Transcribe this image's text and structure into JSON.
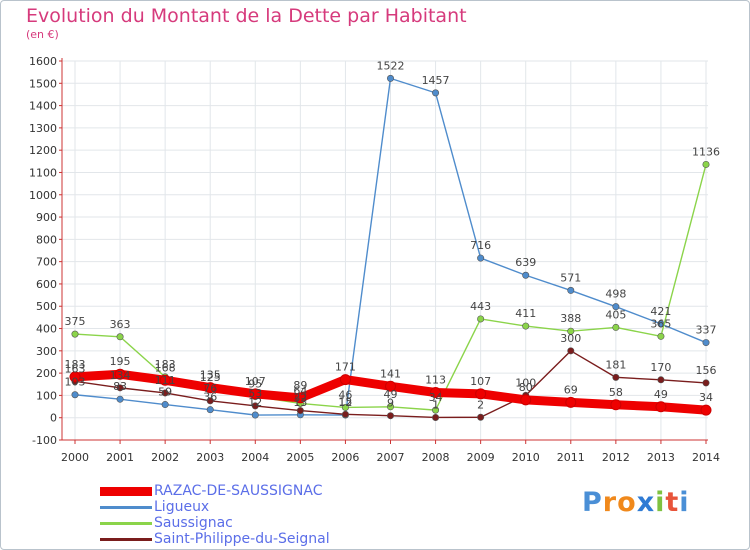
{
  "chart_data": {
    "type": "line",
    "title": "Evolution du Montant de la Dette par Habitant",
    "subtitle": "(en €)",
    "xlabel": "",
    "ylabel": "",
    "ylim": [
      -100,
      1600
    ],
    "ytick_step": 100,
    "x": [
      "2000",
      "2001",
      "2002",
      "2003",
      "2004",
      "2005",
      "2006",
      "2007",
      "2008",
      "2009",
      "2010",
      "2011",
      "2012",
      "2013",
      "2014"
    ],
    "series": [
      {
        "name": "RAZAC-DE-SAUSSIGNAC",
        "color": "#ee0000",
        "values": [
          183,
          195,
          168,
          135,
          107,
          89,
          171,
          141,
          113,
          107,
          80,
          69,
          58,
          49,
          34
        ]
      },
      {
        "name": "Ligueux",
        "color": "#4f8ccc",
        "values": [
          103,
          83,
          59,
          36,
          12,
          13,
          12,
          1522,
          1457,
          716,
          639,
          571,
          498,
          421,
          337
        ]
      },
      {
        "name": "Saussignac",
        "color": "#8bd44a",
        "values": [
          375,
          363,
          183,
          125,
          95,
          64,
          46,
          49,
          34,
          443,
          411,
          388,
          405,
          365,
          1136
        ]
      },
      {
        "name": "Saint-Philippe-du-Seignal",
        "color": "#7a1d1d",
        "values": [
          163,
          134,
          111,
          76,
          53,
          32,
          15,
          9,
          1,
          2,
          100,
          300,
          181,
          170,
          156
        ]
      }
    ]
  },
  "branding": {
    "logo_text": "Proxiti"
  }
}
